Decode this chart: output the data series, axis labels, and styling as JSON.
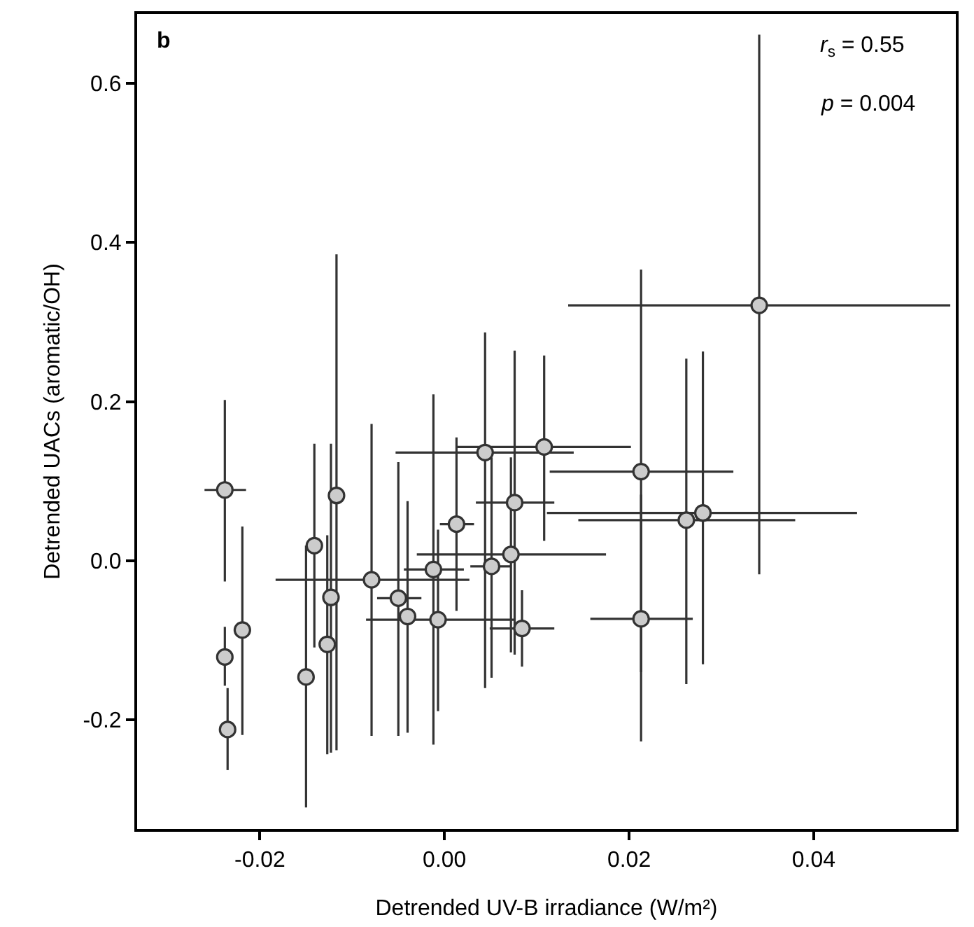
{
  "chart_data": {
    "type": "scatter",
    "xlabel": "Detrended UV-B irradiance (W/m²)",
    "ylabel": "Detrended UACs (aromatic/OH)",
    "annotations": [
      "b",
      "r$_{s}$ = 0.55",
      "p = 0.004"
    ],
    "x": [
      -0.0238,
      -0.0219,
      -0.0238,
      -0.0235,
      -0.015,
      -0.0141,
      -0.0123,
      -0.0127,
      -0.0117,
      -0.0079,
      -0.005,
      -0.004,
      -0.0012,
      -0.0007,
      0.0013,
      0.0044,
      0.0051,
      0.0108,
      0.0076,
      0.0072,
      0.0084,
      0.0341,
      0.0213,
      0.0262,
      0.028,
      0.0213
    ],
    "series": [
      {
        "color": "#cccccc",
        "values": [
          0.089,
          -0.087,
          -0.121,
          -0.212,
          -0.146,
          0.019,
          -0.046,
          -0.105,
          0.082,
          -0.024,
          -0.047,
          -0.07,
          -0.011,
          -0.074,
          0.046,
          0.136,
          -0.007,
          0.143,
          0.073,
          0.008,
          -0.085,
          0.321,
          0.112,
          0.051,
          0.06,
          -0.073
        ],
        "errors": [
          [
            -0.026,
            0.202
          ],
          [
            -0.219,
            0.043
          ],
          [
            -0.157,
            -0.083
          ],
          [
            -0.263,
            -0.16
          ],
          [
            -0.31,
            0.019
          ],
          [
            -0.109,
            0.147
          ],
          [
            -0.241,
            0.147
          ],
          [
            -0.243,
            0.032
          ],
          [
            -0.238,
            0.385
          ],
          [
            -0.22,
            0.172
          ],
          [
            -0.22,
            0.124
          ],
          [
            -0.216,
            0.075
          ],
          [
            -0.231,
            0.209
          ],
          [
            -0.189,
            0.039
          ],
          [
            -0.063,
            0.155
          ],
          [
            -0.16,
            0.287
          ],
          [
            -0.147,
            0.13
          ],
          [
            0.025,
            0.258
          ],
          [
            -0.118,
            0.264
          ],
          [
            -0.115,
            0.13
          ],
          [
            -0.133,
            -0.037
          ],
          [
            -0.017,
            0.661
          ],
          [
            -0.14,
            0.366
          ],
          [
            -0.155,
            0.254
          ],
          [
            -0.13,
            0.263
          ],
          [
            -0.227,
            0.083
          ]
        ],
        "xerrors": [
          [
            -0.026,
            -0.0215
          ],
          null,
          null,
          null,
          null,
          null,
          null,
          null,
          null,
          [
            -0.0183,
            0.0027
          ],
          [
            -0.0073,
            -0.0025
          ],
          null,
          [
            -0.0044,
            0.0021
          ],
          [
            -0.0085,
            0.0075
          ],
          [
            -0.0005,
            0.0032
          ],
          [
            -0.0053,
            0.014
          ],
          [
            0.0028,
            0.0072
          ],
          [
            0.0014,
            0.0202
          ],
          [
            0.0034,
            0.0119
          ],
          [
            -0.003,
            0.0175
          ],
          [
            0.0049,
            0.0119
          ],
          [
            0.0134,
            0.0548
          ],
          [
            0.0114,
            0.0313
          ],
          [
            0.0145,
            0.038
          ],
          [
            0.0111,
            0.0447
          ],
          [
            0.0158,
            0.0269
          ]
        ]
      }
    ],
    "xlim": [
      -0.0333,
      0.0554
    ],
    "ylim": [
      -0.337,
      0.687
    ],
    "xticks": [
      -0.02,
      {
        "value": 0,
        "label": "0.00"
      },
      {
        "value": 0.02,
        "label": "0.02"
      },
      {
        "value": 0.04,
        "label": "0.04"
      }
    ],
    "yticks": [
      -0.2,
      {
        "value": 0,
        "label": "0.0"
      },
      0.2,
      0.4,
      0.6
    ],
    "marker": "circle"
  }
}
